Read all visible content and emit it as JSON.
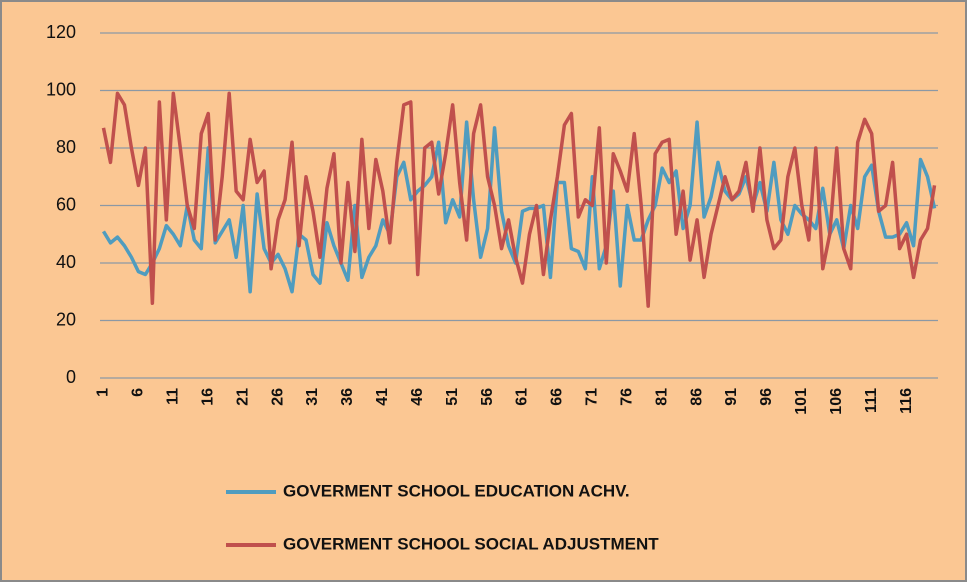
{
  "chart_data": {
    "type": "line",
    "categories": [
      "1",
      null,
      null,
      null,
      null,
      "6",
      null,
      null,
      null,
      null,
      "11",
      null,
      null,
      null,
      null,
      "16",
      null,
      null,
      null,
      null,
      "21",
      null,
      null,
      null,
      null,
      "26",
      null,
      null,
      null,
      null,
      "31",
      null,
      null,
      null,
      null,
      "36",
      null,
      null,
      null,
      null,
      "41",
      null,
      null,
      null,
      null,
      "46",
      null,
      null,
      null,
      null,
      "51",
      null,
      null,
      null,
      null,
      "56",
      null,
      null,
      null,
      null,
      "61",
      null,
      null,
      null,
      null,
      "66",
      null,
      null,
      null,
      null,
      "71",
      null,
      null,
      null,
      null,
      "76",
      null,
      null,
      null,
      null,
      "81",
      null,
      null,
      null,
      null,
      "86",
      null,
      null,
      null,
      null,
      "91",
      null,
      null,
      null,
      null,
      "96",
      null,
      null,
      null,
      null,
      "101",
      null,
      null,
      null,
      null,
      "106",
      null,
      null,
      null,
      null,
      "111",
      null,
      null,
      null,
      null,
      "116",
      null,
      null,
      null,
      null
    ],
    "series": [
      {
        "name": "GOVERMENT SCHOOL EDUCATION ACHV.",
        "color": "#4f9cbf",
        "values": [
          51,
          47,
          49,
          46,
          42,
          37,
          36,
          40,
          45,
          53,
          50,
          46,
          60,
          48,
          45,
          80,
          47,
          51,
          55,
          42,
          60,
          30,
          64,
          45,
          40,
          43,
          38,
          30,
          50,
          48,
          36,
          33,
          54,
          46,
          40,
          34,
          60,
          35,
          42,
          46,
          55,
          50,
          70,
          75,
          62,
          65,
          67,
          70,
          82,
          54,
          62,
          56,
          89,
          62,
          42,
          52,
          87,
          58,
          46,
          40,
          58,
          59,
          59,
          60,
          35,
          68,
          68,
          45,
          44,
          38,
          70,
          38,
          46,
          65,
          32,
          60,
          48,
          48,
          55,
          60,
          73,
          68,
          72,
          52,
          60,
          89,
          56,
          63,
          75,
          65,
          62,
          64,
          70,
          60,
          68,
          58,
          75,
          55,
          50,
          60,
          57,
          55,
          52,
          66,
          50,
          55,
          45,
          60,
          52,
          70,
          74,
          58,
          49,
          49,
          50,
          54,
          46,
          76,
          70,
          59
        ]
      },
      {
        "name": "GOVERMENT SCHOOL SOCIAL ADJUSTMENT",
        "color": "#c0504d",
        "values": [
          87,
          75,
          99,
          95,
          80,
          67,
          80,
          26,
          96,
          55,
          99,
          80,
          60,
          52,
          85,
          92,
          48,
          70,
          99,
          65,
          62,
          83,
          68,
          72,
          38,
          55,
          62,
          82,
          46,
          70,
          58,
          42,
          66,
          78,
          40,
          68,
          44,
          83,
          52,
          76,
          65,
          47,
          75,
          95,
          96,
          36,
          80,
          82,
          64,
          78,
          95,
          68,
          48,
          85,
          95,
          70,
          60,
          45,
          55,
          42,
          33,
          50,
          60,
          36,
          55,
          70,
          88,
          92,
          56,
          62,
          60,
          87,
          40,
          78,
          72,
          65,
          85,
          60,
          25,
          78,
          82,
          83,
          50,
          65,
          41,
          55,
          35,
          50,
          60,
          70,
          62,
          65,
          75,
          58,
          80,
          55,
          45,
          48,
          70,
          80,
          60,
          48,
          80,
          38,
          50,
          80,
          45,
          38,
          82,
          90,
          85,
          58,
          60,
          75,
          45,
          50,
          35,
          48,
          52,
          67
        ]
      }
    ],
    "ylim": [
      0,
      120
    ],
    "yticks": [
      0,
      20,
      40,
      60,
      80,
      100,
      120
    ],
    "grid": true,
    "legend": "bottom"
  }
}
